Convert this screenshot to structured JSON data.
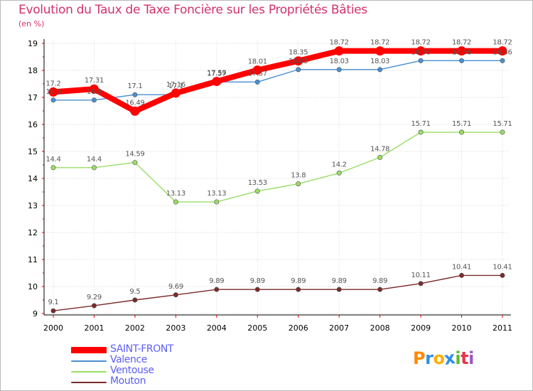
{
  "title": "Evolution du Taux de Taxe Foncière sur les Propriétés Bâties",
  "unit_label": "(en %)",
  "logo": {
    "letters": [
      "P",
      "r",
      "o",
      "x",
      "i",
      "t",
      "i"
    ],
    "colors": [
      "#ff8a00",
      "#2f8ee5",
      "#ffb000",
      "#2f8ee5",
      "#5aba2a",
      "#e8334a",
      "#9a57c6"
    ]
  },
  "chart_data": {
    "type": "line",
    "x": [
      "2000",
      "2001",
      "2002",
      "2003",
      "2004",
      "2005",
      "2006",
      "2007",
      "2008",
      "2009",
      "2010",
      "2011"
    ],
    "ylim": [
      9,
      19
    ],
    "yticks": [
      "9",
      "10",
      "11",
      "12",
      "13",
      "14",
      "15",
      "16",
      "17",
      "18",
      "19"
    ],
    "grid": true,
    "legend_position": "bottom-left",
    "series": [
      {
        "name": "SAINT-FRONT",
        "color": "#ff0000",
        "values": [
          17.2,
          17.31,
          16.49,
          17.16,
          17.59,
          18.01,
          18.35,
          18.72,
          18.72,
          18.72,
          18.72,
          18.72
        ],
        "labels": [
          "17.2",
          "17.31",
          "16.49",
          "17.16",
          "17.59",
          "18.01",
          "18.35",
          "18.72",
          "18.72",
          "18.72",
          "18.72",
          "18.72"
        ]
      },
      {
        "name": "Valence",
        "color": "#4a8fd0",
        "values": [
          16.9,
          16.9,
          17.1,
          17.1,
          17.57,
          17.57,
          18.03,
          18.03,
          18.03,
          18.36,
          18.36,
          18.36
        ],
        "labels": [
          "16.9",
          "16.9",
          "17.1",
          "17.1",
          "17.57",
          "17.57",
          "18.03",
          "18.03",
          "18.03",
          "18.36",
          "18.36",
          "18.36"
        ]
      },
      {
        "name": "Ventouse",
        "color": "#99dd66",
        "values": [
          14.4,
          14.4,
          14.59,
          13.13,
          13.13,
          13.53,
          13.8,
          14.2,
          14.78,
          15.71,
          15.71,
          15.71
        ],
        "labels": [
          "14.4",
          "14.4",
          "14.59",
          "13.13",
          "13.13",
          "13.53",
          "13.8",
          "14.2",
          "14.78",
          "15.71",
          "15.71",
          "15.71"
        ]
      },
      {
        "name": "Mouton",
        "color": "#7a2a2a",
        "values": [
          9.1,
          9.29,
          9.5,
          9.69,
          9.89,
          9.89,
          9.89,
          9.89,
          9.89,
          10.11,
          10.41,
          10.41
        ],
        "labels": [
          "9.1",
          "9.29",
          "9.5",
          "9.69",
          "9.89",
          "9.89",
          "9.89",
          "9.89",
          "9.89",
          "10.11",
          "10.41",
          "10.41"
        ]
      }
    ]
  }
}
